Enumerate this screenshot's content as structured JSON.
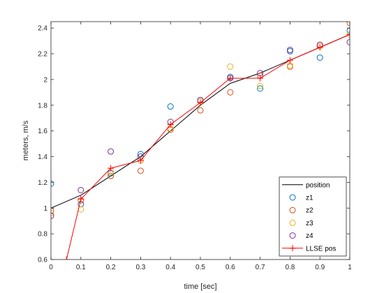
{
  "chart_data": {
    "type": "line",
    "xlabel": "time [sec]",
    "ylabel": "meters, m/s",
    "xlim": [
      0,
      1
    ],
    "ylim": [
      0.6,
      2.45
    ],
    "xticks": [
      0,
      0.1,
      0.2,
      0.3,
      0.4,
      0.5,
      0.6,
      0.7,
      0.8,
      0.9,
      1
    ],
    "xtick_labels": [
      "0",
      "0.1",
      "0.2",
      "0.3",
      "0.4",
      "0.5",
      "0.6",
      "0.7",
      "0.8",
      "0.9",
      "1"
    ],
    "yticks": [
      0.6,
      0.8,
      1,
      1.2,
      1.4,
      1.6,
      1.8,
      2,
      2.2,
      2.4
    ],
    "ytick_labels": [
      "0.6",
      "0.8",
      "1",
      "1.2",
      "1.4",
      "1.6",
      "1.8",
      "2",
      "2.2",
      "2.4"
    ],
    "grid": false,
    "legend_placement": "bottom-right",
    "x": [
      0,
      0.1,
      0.2,
      0.3,
      0.4,
      0.5,
      0.6,
      0.7,
      0.8,
      0.9,
      1
    ],
    "series": [
      {
        "name": "position",
        "style": "line",
        "color": "#000000",
        "values": [
          1.0,
          1.1,
          1.25,
          1.4,
          1.6,
          1.8,
          1.97,
          2.05,
          2.15,
          2.25,
          2.35
        ]
      },
      {
        "name": "z1",
        "style": "circle",
        "color": "#0072BD",
        "values": [
          1.19,
          1.03,
          1.27,
          1.42,
          1.79,
          1.84,
          2.02,
          1.93,
          2.22,
          2.17,
          2.38
        ]
      },
      {
        "name": "z2",
        "style": "circle",
        "color": "#D95319",
        "values": [
          0.98,
          1.06,
          1.25,
          1.29,
          1.61,
          1.76,
          1.9,
          2.03,
          2.1,
          2.26,
          2.44
        ]
      },
      {
        "name": "z3",
        "style": "circle",
        "color": "#EDB120",
        "values": [
          0.96,
          0.99,
          1.28,
          1.37,
          1.62,
          1.83,
          2.1,
          1.95,
          2.11,
          2.26,
          2.35
        ]
      },
      {
        "name": "z4",
        "style": "circle",
        "color": "#7E2F8E",
        "values": [
          0.94,
          1.14,
          1.44,
          1.4,
          1.67,
          1.84,
          2.01,
          2.05,
          2.23,
          2.27,
          2.29
        ]
      },
      {
        "name": "LLSE pos",
        "style": "line-plus",
        "color": "#FF0000",
        "x": [
          0.052,
          0.1,
          0.2,
          0.3,
          0.4,
          0.5,
          0.6,
          0.7,
          0.8,
          0.9,
          1
        ],
        "values": [
          0.6,
          1.07,
          1.31,
          1.37,
          1.65,
          1.82,
          2.01,
          2.01,
          2.15,
          2.25,
          2.35
        ]
      }
    ]
  }
}
